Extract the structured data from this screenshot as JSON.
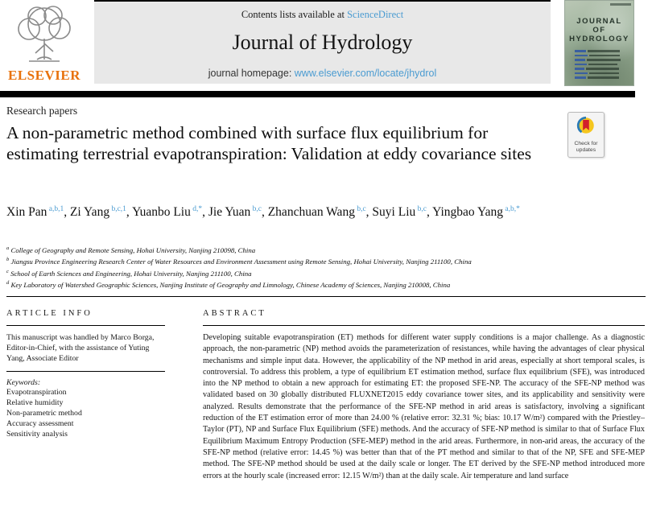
{
  "header": {
    "contents_prefix": "Contents lists available at ",
    "sciencedirect_link": "ScienceDirect",
    "journal_title": "Journal of Hydrology",
    "homepage_prefix": "journal homepage: ",
    "homepage_link": "www.elsevier.com/locate/jhydrol",
    "elsevier_logo_text": "ELSEVIER",
    "cover_title": "JOURNAL OF HYDROLOGY"
  },
  "article": {
    "type_label": "Research papers",
    "title": "A non-parametric method combined with surface flux equilibrium for estimating terrestrial evapotranspiration: Validation at eddy covariance sites",
    "authors": [
      {
        "name": "Xin Pan",
        "sup": "a,b,1"
      },
      {
        "name": "Zi Yang",
        "sup": "b,c,1"
      },
      {
        "name": "Yuanbo Liu",
        "sup": "d,*"
      },
      {
        "name": "Jie Yuan",
        "sup": "b,c"
      },
      {
        "name": "Zhanchuan Wang",
        "sup": "b,c"
      },
      {
        "name": "Suyi Liu",
        "sup": "b,c"
      },
      {
        "name": "Yingbao Yang",
        "sup": "a,b,*"
      }
    ],
    "affiliations": [
      {
        "sup": "a",
        "text": "College of Geography and Remote Sensing, Hohai University, Nanjing 210098, China"
      },
      {
        "sup": "b",
        "text": "Jiangsu Province Engineering Research Center of Water Resources and Environment Assessment using Remote Sensing, Hohai University, Nanjing 211100, China"
      },
      {
        "sup": "c",
        "text": "School of Earth Sciences and Engineering, Hohai University, Nanjing 211100, China"
      },
      {
        "sup": "d",
        "text": "Key Laboratory of Watershed Geographic Sciences, Nanjing Institute of Geography and Limnology, Chinese Academy of Sciences, Nanjing 210008, China"
      }
    ]
  },
  "article_info": {
    "heading": "ARTICLE INFO",
    "handled_by": "This manuscript was handled by Marco Borga, Editor-in-Chief, with the assistance of Yuting Yang, Associate Editor",
    "keywords_label": "Keywords:",
    "keywords": [
      "Evapotranspiration",
      "Relative humidity",
      "Non-parametric method",
      "Accuracy assessment",
      "Sensitivity analysis"
    ]
  },
  "abstract": {
    "heading": "ABSTRACT",
    "text": "Developing suitable evapotranspiration (ET) methods for different water supply conditions is a major challenge. As a diagnostic approach, the non-parametric (NP) method avoids the parameterization of resistances, while having the advantages of clear physical mechanisms and simple input data. However, the applicability of the NP method in arid areas, especially at short temporal scales, is controversial. To address this problem, a type of equilibrium ET estimation method, surface flux equilibrium (SFE), was introduced into the NP method to obtain a new approach for estimating ET: the proposed SFE-NP. The accuracy of the SFE-NP method was validated based on 30 globally distributed FLUXNET2015 eddy covariance tower sites, and its applicability and sensitivity were analyzed. Results demonstrate that the performance of the SFE-NP method in arid areas is satisfactory, involving a significant reduction of the ET estimation error of more than 24.00 % (relative error: 32.31 %; bias: 10.17 W/m²) compared with the Priestley–Taylor (PT), NP and Surface Flux Equilibrium (SFE) methods. And the accuracy of SFE-NP method is similar to that of Surface Flux Equilibrium Maximum Entropy Production (SFE-MEP) method in the arid areas. Furthermore, in non-arid areas, the accuracy of the SFE-NP method (relative error: 14.45 %) was better than that of the PT method and similar to that of the NP, SFE and SFE-MEP method. The SFE-NP method should be used at the daily scale or longer. The ET derived by the SFE-NP method introduced more errors at the hourly scale (increased error: 12.15 W/m²) than at the daily scale. Air temperature and land surface"
  },
  "badge": {
    "line1": "Check for",
    "line2": "updates"
  },
  "colors": {
    "link_blue": "#4a9bd1",
    "elsevier_orange": "#e8720c",
    "header_gray": "#e8e8e8"
  }
}
